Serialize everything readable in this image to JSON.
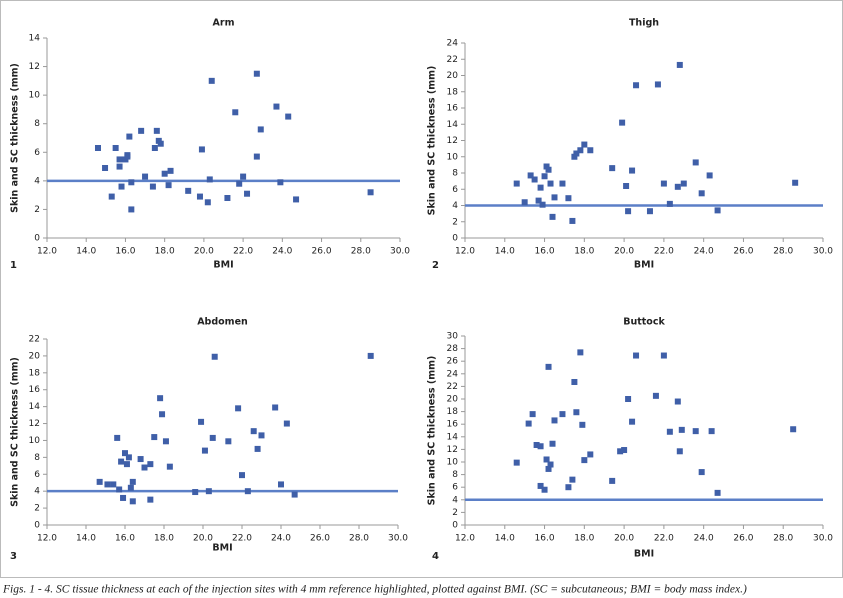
{
  "chart_data": [
    {
      "type": "scatter",
      "title": "Arm",
      "panel_label": "1",
      "x_label": "BMI",
      "y_label": "Skin and SC thickness (mm)",
      "color": "#3f5fa8",
      "reference_line": 4,
      "reference_color": "#5b7fc7",
      "xlim": [
        12,
        30
      ],
      "xticks": [
        {
          "value": 12,
          "label": "12.0"
        },
        {
          "value": 14,
          "label": "14.0"
        },
        {
          "value": 16,
          "label": "16.0"
        },
        {
          "value": 18,
          "label": "18.0"
        },
        {
          "value": 20,
          "label": "20.0"
        },
        {
          "value": 22,
          "label": "22.0"
        },
        {
          "value": 24,
          "label": "24.0"
        },
        {
          "value": 26,
          "label": "26.0"
        },
        {
          "value": 28,
          "label": "28.0"
        },
        {
          "value": 30,
          "label": "30.0"
        }
      ],
      "ylim": [
        0,
        14
      ],
      "yticks": [
        0,
        2,
        4,
        6,
        8,
        10,
        12,
        14
      ],
      "x": [
        14.6,
        14.96,
        15.3,
        15.5,
        15.7,
        15.7,
        15.8,
        16.0,
        16.1,
        16.1,
        16.2,
        16.3,
        16.3,
        16.8,
        17.0,
        17.4,
        17.5,
        17.6,
        17.7,
        17.8,
        18.0,
        18.3,
        18.2,
        19.2,
        19.8,
        19.9,
        20.2,
        20.3,
        20.4,
        21.2,
        21.6,
        21.8,
        22.0,
        22.2,
        22.7,
        22.7,
        22.9,
        23.7,
        23.9,
        24.3,
        24.7,
        28.5
      ],
      "values": [
        6.3,
        4.9,
        2.9,
        6.3,
        5.5,
        5.0,
        3.6,
        5.5,
        5.7,
        5.8,
        7.1,
        3.9,
        2.0,
        7.5,
        4.3,
        3.6,
        6.3,
        7.5,
        6.8,
        6.6,
        4.5,
        4.7,
        3.7,
        3.3,
        2.9,
        6.2,
        2.5,
        4.1,
        11.0,
        2.8,
        8.8,
        3.8,
        4.3,
        3.1,
        11.5,
        5.7,
        7.6,
        9.2,
        3.9,
        8.5,
        2.7,
        3.2
      ]
    },
    {
      "type": "scatter",
      "title": "Thigh",
      "panel_label": "2",
      "x_label": "BMI",
      "y_label": "Skin and SC thickness (mm)",
      "color": "#3f5fa8",
      "reference_line": 4,
      "reference_color": "#5b7fc7",
      "xlim": [
        12,
        30
      ],
      "xticks": [
        {
          "value": 12,
          "label": "12.0"
        },
        {
          "value": 14,
          "label": "14.0"
        },
        {
          "value": 16,
          "label": "16.0"
        },
        {
          "value": 18,
          "label": "18.0"
        },
        {
          "value": 20,
          "label": "20.0"
        },
        {
          "value": 22,
          "label": "22.0"
        },
        {
          "value": 24,
          "label": "24.0"
        },
        {
          "value": 26,
          "label": "26.0"
        },
        {
          "value": 28,
          "label": "28.0"
        },
        {
          "value": 30,
          "label": "30.0"
        }
      ],
      "ylim": [
        0,
        24
      ],
      "yticks": [
        0,
        2,
        4,
        6,
        8,
        10,
        12,
        14,
        16,
        18,
        20,
        22,
        24
      ],
      "x": [
        14.6,
        15.0,
        15.3,
        15.5,
        15.7,
        15.8,
        15.9,
        16.0,
        16.1,
        16.2,
        16.3,
        16.4,
        16.5,
        16.9,
        17.2,
        17.4,
        17.5,
        17.6,
        17.8,
        18.0,
        18.3,
        19.4,
        19.9,
        20.1,
        20.2,
        20.4,
        20.6,
        21.3,
        21.7,
        22.0,
        22.3,
        22.7,
        22.8,
        23.0,
        23.6,
        23.9,
        24.3,
        24.7,
        28.6
      ],
      "values": [
        6.7,
        4.4,
        7.7,
        7.2,
        4.6,
        6.2,
        4.1,
        7.6,
        8.8,
        8.4,
        6.7,
        2.6,
        5.0,
        6.7,
        4.9,
        2.1,
        10.0,
        10.4,
        10.8,
        11.5,
        10.8,
        8.6,
        14.2,
        6.4,
        3.3,
        8.3,
        18.8,
        3.3,
        18.9,
        6.7,
        4.2,
        6.3,
        21.3,
        6.7,
        9.3,
        5.5,
        7.7,
        3.4,
        6.8
      ]
    },
    {
      "type": "scatter",
      "title": "Abdomen",
      "panel_label": "3",
      "x_label": "BMI",
      "y_label": "Skin and SC thickness (mm)",
      "color": "#3f5fa8",
      "reference_line": 4,
      "reference_color": "#5b7fc7",
      "xlim": [
        12,
        30
      ],
      "xticks": [
        {
          "value": 12,
          "label": "12.0"
        },
        {
          "value": 14,
          "label": "14.0"
        },
        {
          "value": 16,
          "label": "16.0"
        },
        {
          "value": 18,
          "label": "18.0"
        },
        {
          "value": 20,
          "label": "20.0"
        },
        {
          "value": 22,
          "label": "22.0"
        },
        {
          "value": 24,
          "label": "24.0"
        },
        {
          "value": 26,
          "label": "26.0"
        },
        {
          "value": 28,
          "label": "28.0"
        },
        {
          "value": 30,
          "label": "30.0"
        }
      ],
      "ylim": [
        0,
        22
      ],
      "yticks": [
        0,
        2,
        4,
        6,
        8,
        10,
        12,
        14,
        16,
        18,
        20,
        22
      ],
      "x": [
        14.7,
        15.1,
        15.4,
        15.6,
        15.7,
        15.8,
        15.9,
        16.0,
        16.1,
        16.2,
        16.3,
        16.4,
        16.4,
        16.8,
        17.0,
        17.3,
        17.3,
        17.5,
        17.8,
        17.9,
        18.1,
        18.3,
        19.6,
        19.9,
        20.1,
        20.3,
        20.5,
        20.6,
        21.3,
        21.8,
        22.0,
        22.3,
        22.6,
        22.8,
        23.0,
        23.7,
        24.0,
        24.3,
        24.7,
        28.6
      ],
      "values": [
        5.1,
        4.8,
        4.8,
        10.3,
        4.2,
        7.5,
        3.2,
        8.5,
        7.2,
        8.0,
        4.4,
        2.8,
        5.1,
        7.8,
        6.8,
        7.2,
        3.0,
        10.4,
        15.0,
        13.1,
        9.9,
        6.9,
        3.9,
        12.2,
        8.8,
        4.0,
        10.3,
        19.9,
        9.9,
        13.8,
        5.9,
        4.0,
        11.1,
        9.0,
        10.6,
        13.9,
        4.8,
        12.0,
        3.6,
        20.0
      ]
    },
    {
      "type": "scatter",
      "title": "Buttock",
      "panel_label": "4",
      "x_label": "BMI",
      "y_label": "Skin and SC thickness (mm)",
      "color": "#3f5fa8",
      "reference_line": 4,
      "reference_color": "#5b7fc7",
      "xlim": [
        12,
        30
      ],
      "xticks": [
        {
          "value": 12,
          "label": "12.0"
        },
        {
          "value": 14,
          "label": "14.0"
        },
        {
          "value": 16,
          "label": "16.0"
        },
        {
          "value": 18,
          "label": "18.0"
        },
        {
          "value": 20,
          "label": "20.0"
        },
        {
          "value": 22,
          "label": "22.0"
        },
        {
          "value": 24,
          "label": "24.0"
        },
        {
          "value": 26,
          "label": "26.0"
        },
        {
          "value": 28,
          "label": "28.0"
        },
        {
          "value": 30,
          "label": "30.0"
        }
      ],
      "ylim": [
        0,
        30
      ],
      "yticks": [
        0,
        2,
        4,
        6,
        8,
        10,
        12,
        14,
        16,
        18,
        20,
        22,
        24,
        26,
        28,
        30
      ],
      "x": [
        14.6,
        15.2,
        15.4,
        15.6,
        15.8,
        15.8,
        16.0,
        16.1,
        16.2,
        16.2,
        16.3,
        16.4,
        16.5,
        16.9,
        17.2,
        17.4,
        17.5,
        17.6,
        17.8,
        17.9,
        18.0,
        18.3,
        19.4,
        19.8,
        20.0,
        20.2,
        20.4,
        20.6,
        21.6,
        22.0,
        22.3,
        22.7,
        22.8,
        22.9,
        23.6,
        23.9,
        24.4,
        24.7,
        28.5
      ],
      "values": [
        9.9,
        16.1,
        17.6,
        12.7,
        12.5,
        6.2,
        5.6,
        10.4,
        25.1,
        8.9,
        9.6,
        12.9,
        16.6,
        17.6,
        6.0,
        7.2,
        22.7,
        17.9,
        27.4,
        15.9,
        10.3,
        11.2,
        7.0,
        11.7,
        11.9,
        20.0,
        16.4,
        26.9,
        20.5,
        26.9,
        14.8,
        19.6,
        11.7,
        15.1,
        14.9,
        8.4,
        14.9,
        5.1,
        15.2
      ]
    }
  ],
  "caption": "Figs. 1 - 4. SC tissue thickness at each of the injection sites with 4 mm reference highlighted, plotted against BMI. (SC = subcutaneous; BMI = body mass index.)"
}
